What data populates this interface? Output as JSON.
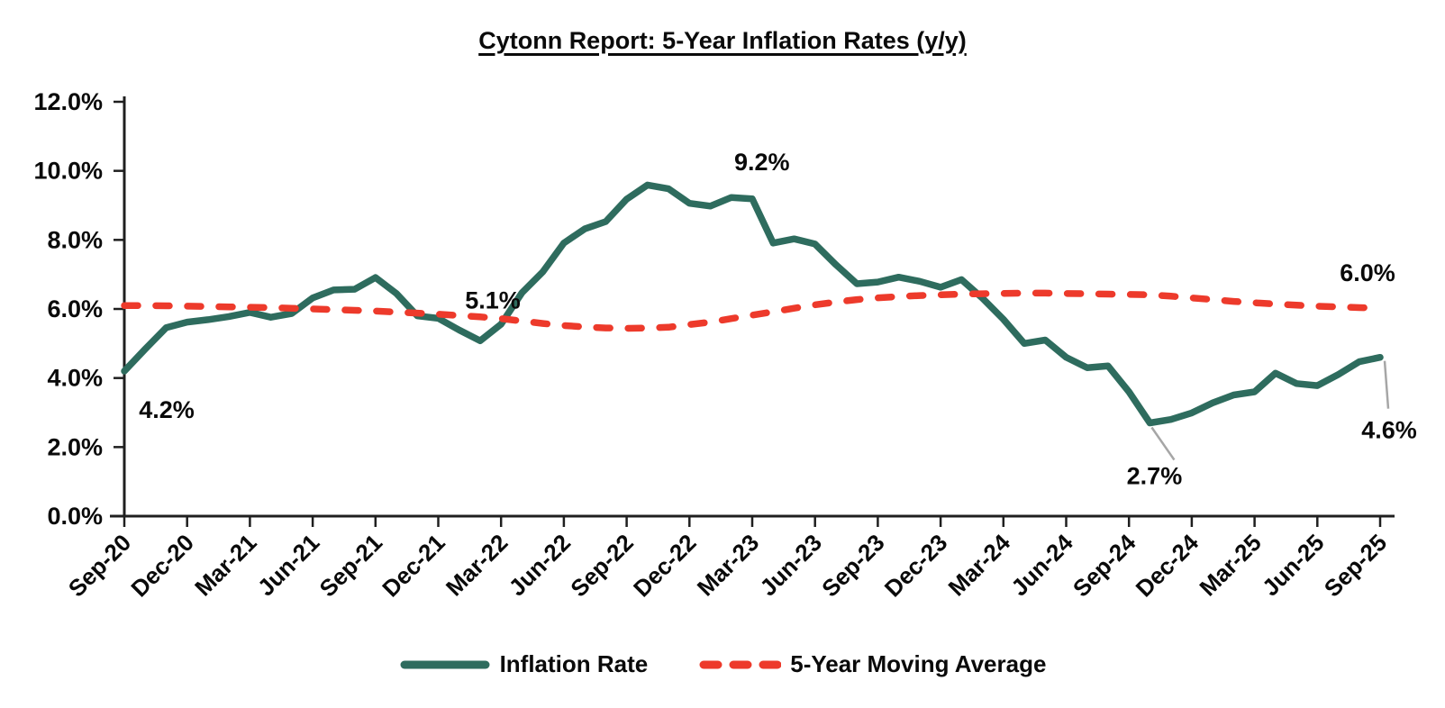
{
  "title": "Cytonn Report: 5-Year Inflation Rates (y/y)",
  "colors": {
    "inflation_line": "#2E6C5E",
    "moving_average_line": "#ED3A2B",
    "axis": "#1f1f1f",
    "text": "#0a0a0a",
    "leader_line": "#a6a6a6",
    "background": "#ffffff"
  },
  "legend": [
    {
      "label": "Inflation Rate",
      "color": "#2E6C5E",
      "style": "solid"
    },
    {
      "label": "5-Year Moving Average",
      "color": "#ED3A2B",
      "style": "dashed"
    }
  ],
  "chart_data": {
    "type": "line",
    "title": "Cytonn Report: 5-Year Inflation Rates (y/y)",
    "xlabel": "",
    "ylabel": "",
    "ylim": [
      0,
      12
    ],
    "grid": false,
    "legend_position": "bottom",
    "y_ticks": [
      {
        "value": 0,
        "label": "0.0%"
      },
      {
        "value": 2,
        "label": "2.0%"
      },
      {
        "value": 4,
        "label": "4.0%"
      },
      {
        "value": 6,
        "label": "6.0%"
      },
      {
        "value": 8,
        "label": "8.0%"
      },
      {
        "value": 10,
        "label": "10.0%"
      },
      {
        "value": 12,
        "label": "12.0%"
      }
    ],
    "x_tick_labels": [
      "Sep-20",
      "Dec-20",
      "Mar-21",
      "Jun-21",
      "Sep-21",
      "Dec-21",
      "Mar-22",
      "Jun-22",
      "Sep-22",
      "Dec-22",
      "Mar-23",
      "Jun-23",
      "Sep-23",
      "Dec-23",
      "Mar-24",
      "Jun-24",
      "Sep-24",
      "Dec-24",
      "Mar-25",
      "Jun-25",
      "Sep-25"
    ],
    "tick_every": 3,
    "series": [
      {
        "name": "Inflation Rate",
        "color": "#2E6C5E",
        "dashed": false,
        "values": [
          4.2,
          4.84,
          5.46,
          5.62,
          5.69,
          5.78,
          5.9,
          5.76,
          5.87,
          6.32,
          6.55,
          6.57,
          6.91,
          6.45,
          5.8,
          5.73,
          5.39,
          5.08,
          5.56,
          6.47,
          7.08,
          7.91,
          8.32,
          8.53,
          9.18,
          9.59,
          9.48,
          9.06,
          8.98,
          9.23,
          9.19,
          7.91,
          8.03,
          7.88,
          7.28,
          6.73,
          6.78,
          6.92,
          6.8,
          6.63,
          6.85,
          6.31,
          5.7,
          5.0,
          5.1,
          4.6,
          4.3,
          4.35,
          3.6,
          2.7,
          2.8,
          2.99,
          3.28,
          3.51,
          3.6,
          4.14,
          3.84,
          3.78,
          4.1,
          4.47,
          4.6
        ]
      },
      {
        "name": "5-Year Moving Average",
        "color": "#ED3A2B",
        "dashed": true,
        "values": [
          6.1,
          6.1,
          6.09,
          6.08,
          6.07,
          6.06,
          6.05,
          6.04,
          6.02,
          6.0,
          5.98,
          5.96,
          5.94,
          5.91,
          5.88,
          5.85,
          5.81,
          5.77,
          5.72,
          5.65,
          5.58,
          5.52,
          5.48,
          5.45,
          5.44,
          5.45,
          5.47,
          5.55,
          5.62,
          5.72,
          5.82,
          5.92,
          6.02,
          6.12,
          6.2,
          6.27,
          6.32,
          6.36,
          6.39,
          6.41,
          6.43,
          6.44,
          6.45,
          6.46,
          6.46,
          6.45,
          6.44,
          6.43,
          6.42,
          6.41,
          6.37,
          6.32,
          6.27,
          6.22,
          6.18,
          6.14,
          6.11,
          6.08,
          6.06,
          6.04,
          6.03
        ]
      }
    ],
    "annotations": [
      {
        "text": "4.2%",
        "series": 0,
        "index": 0,
        "offset": [
          47,
          52
        ]
      },
      {
        "text": "5.1%",
        "series": 0,
        "index": 17,
        "offset": [
          14,
          -36
        ]
      },
      {
        "text": "9.2%",
        "series": 0,
        "index": 29,
        "offset": [
          34,
          -30
        ]
      },
      {
        "text": "2.7%",
        "series": 0,
        "index": 49,
        "offset": [
          5,
          68
        ],
        "leader": [
          [
            2,
            5
          ],
          [
            27,
            41
          ]
        ]
      },
      {
        "text": "6.0%",
        "series": 1,
        "index": 60,
        "offset": [
          -14,
          -30
        ]
      },
      {
        "text": "4.6%",
        "series": 0,
        "index": 60,
        "offset": [
          10,
          90
        ],
        "leader": [
          [
            5,
            4
          ],
          [
            9,
            57
          ]
        ]
      }
    ]
  }
}
